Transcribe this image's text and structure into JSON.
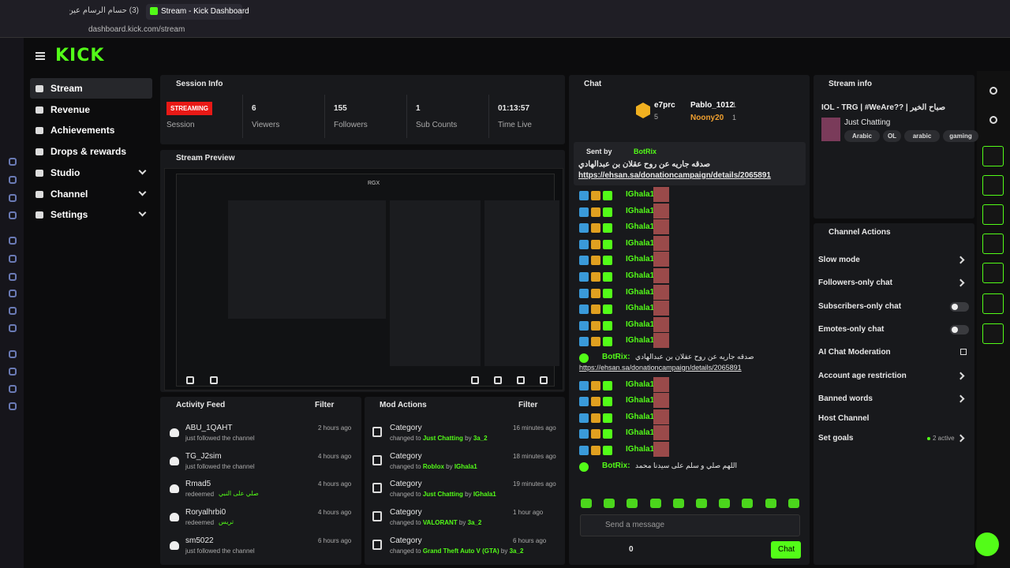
{
  "browser": {
    "tabs": [
      "(3) حسام الرسام عين يد...",
      "Stream - Kick Dashboard"
    ],
    "url": "dashboard.kick.com/stream"
  },
  "logo": "KICK",
  "nav": [
    "Stream",
    "Revenue",
    "Achievements",
    "Drops & rewards",
    "Studio",
    "Channel",
    "Settings"
  ],
  "session_info": {
    "title": "Session Info",
    "stats": [
      {
        "value": "STREAMING",
        "label": "Session"
      },
      {
        "value": "6",
        "label": "Viewers"
      },
      {
        "value": "155",
        "label": "Followers"
      },
      {
        "value": "1",
        "label": "Sub Counts"
      },
      {
        "value": "01:13:57",
        "label": "Time Live"
      }
    ]
  },
  "stream_preview": {
    "title": "Stream Preview",
    "badge": "RGX"
  },
  "activity_feed": {
    "title": "Activity Feed",
    "filter": "Filter",
    "items": [
      {
        "name": "ABU_1QAHT",
        "time": "2 hours ago",
        "text": "just followed the channel"
      },
      {
        "name": "TG_J2sim",
        "time": "4 hours ago",
        "text": "just followed the channel"
      },
      {
        "name": "Rmad5",
        "time": "4 hours ago",
        "text": "redeemed",
        "reward": "صلي على النبي"
      },
      {
        "name": "Roryalhrbi0",
        "time": "4 hours ago",
        "text": "redeemed",
        "reward": "تريس"
      },
      {
        "name": "sm5022",
        "time": "6 hours ago",
        "text": "just followed the channel"
      }
    ]
  },
  "mod_actions": {
    "title": "Mod Actions",
    "filter": "Filter",
    "items": [
      {
        "label": "Category",
        "time": "16 minutes ago",
        "changed": "changed to",
        "target": "Just Chatting",
        "by": "by",
        "user": "3a_2"
      },
      {
        "label": "Category",
        "time": "18 minutes ago",
        "changed": "changed to",
        "target": "Roblox",
        "by": "by",
        "user": "IGhala1"
      },
      {
        "label": "Category",
        "time": "19 minutes ago",
        "changed": "changed to",
        "target": "Just Chatting",
        "by": "by",
        "user": "IGhala1"
      },
      {
        "label": "Category",
        "time": "1 hour ago",
        "changed": "changed to",
        "target": "VALORANT",
        "by": "by",
        "user": "3a_2"
      },
      {
        "label": "Category",
        "time": "6 hours ago",
        "changed": "changed to",
        "target": "Grand Theft Auto V (GTA)",
        "by": "by",
        "user": "3a_2"
      }
    ]
  },
  "chat": {
    "title": "Chat",
    "leaders": [
      {
        "name": "e7prc",
        "count": "5"
      },
      {
        "name": "Pablo_1012",
        "count": "1"
      },
      {
        "name": "Noony20",
        "count": "1"
      }
    ],
    "pinned": {
      "sent_by": "Sent by",
      "user": "BotRix",
      "text": "صدقه جاريه عن روح عقلان بن عبدالهادي",
      "link": "https://ehsan.sa/donationcampaign/details/2065891"
    },
    "messages": [
      {
        "user": "IGhala1:"
      },
      {
        "user": "IGhala1:"
      },
      {
        "user": "IGhala1:"
      },
      {
        "user": "IGhala1:"
      },
      {
        "user": "IGhala1:"
      },
      {
        "user": "IGhala1:"
      },
      {
        "user": "IGhala1:"
      },
      {
        "user": "IGhala1:"
      },
      {
        "user": "IGhala1:"
      },
      {
        "user": "IGhala1:"
      },
      {
        "user": "BotRix:",
        "text": "صدقه جاريه عن روح عقلان بن عبدالهادي",
        "link": "https://ehsan.sa/donationcampaign/details/2065891"
      },
      {
        "user": "IGhala1:"
      },
      {
        "user": "IGhala1:"
      },
      {
        "user": "IGhala1:"
      },
      {
        "user": "IGhala1:"
      },
      {
        "user": "IGhala1:"
      },
      {
        "user": "BotRix:",
        "text": "اللهم صلي و سلم على سيدنا محمد"
      }
    ],
    "input": "Send a message",
    "points": "0",
    "send": "Chat"
  },
  "stream_info": {
    "title": "Stream info",
    "stream_title": "IOL - TRG | #WeAre?? | صباح الخير",
    "category": "Just Chatting",
    "tags": [
      "Arabic",
      "OL",
      "arabic",
      "gaming"
    ]
  },
  "channel_actions": {
    "title": "Channel Actions",
    "items": [
      {
        "label": "Slow mode",
        "kind": "arrow"
      },
      {
        "label": "Followers-only chat",
        "kind": "arrow"
      },
      {
        "label": "Subscribers-only chat",
        "kind": "toggle"
      },
      {
        "label": "Emotes-only chat",
        "kind": "toggle"
      },
      {
        "label": "AI Chat Moderation",
        "kind": "ext"
      },
      {
        "label": "Account age restriction",
        "kind": "arrow"
      },
      {
        "label": "Banned words",
        "kind": "arrow"
      },
      {
        "label": "Host Channel",
        "kind": "none"
      },
      {
        "label": "Set goals",
        "kind": "arrow",
        "status": "2 active"
      }
    ]
  }
}
